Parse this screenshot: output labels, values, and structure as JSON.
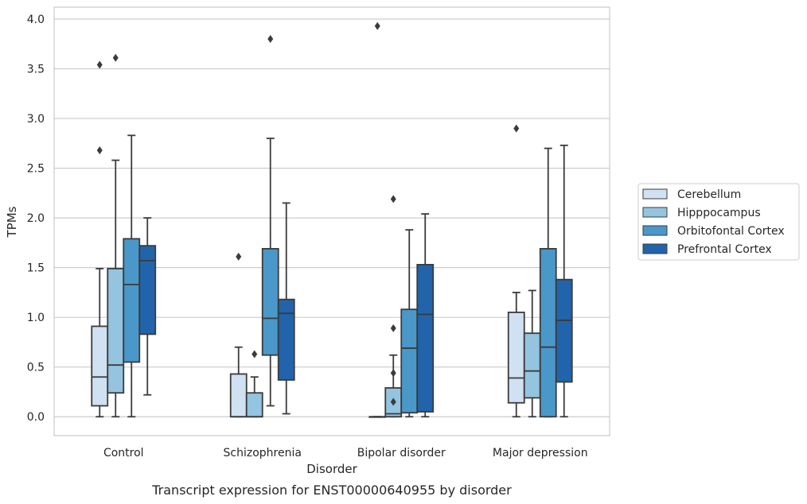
{
  "chart_data": {
    "type": "box",
    "title": "",
    "caption": "Transcript expression for ENST00000640955 by disorder",
    "xlabel": "Disorder",
    "ylabel": "TPMs",
    "ylim": [
      -0.19,
      4.12
    ],
    "yticks": [
      0.0,
      0.5,
      1.0,
      1.5,
      2.0,
      2.5,
      3.0,
      3.5,
      4.0
    ],
    "ytick_labels": [
      "0.0",
      "0.5",
      "1.0",
      "1.5",
      "2.0",
      "2.5",
      "3.0",
      "3.5",
      "4.0"
    ],
    "grid": true,
    "legend_position": "right",
    "categories": [
      "Control",
      "Schizophrenia",
      "Bipolar disorder",
      "Major depression"
    ],
    "series": [
      {
        "name": "Cerebellum",
        "color": "#d0e1f2",
        "boxes": [
          {
            "whislo": 0.0,
            "q1": 0.11,
            "med": 0.4,
            "q3": 0.91,
            "whishi": 1.49,
            "fliers": [
              2.68,
              3.54
            ]
          },
          {
            "whislo": 0.0,
            "q1": 0.0,
            "med": 0.0,
            "q3": 0.43,
            "whishi": 0.7,
            "fliers": [
              1.61
            ]
          },
          {
            "whislo": 0.0,
            "q1": 0.0,
            "med": 0.0,
            "q3": 0.0,
            "whishi": 0.0,
            "fliers": [
              3.93
            ]
          },
          {
            "whislo": 0.0,
            "q1": 0.14,
            "med": 0.39,
            "q3": 1.05,
            "whishi": 1.25,
            "fliers": [
              2.9
            ]
          }
        ]
      },
      {
        "name": "Hipppocampus",
        "color": "#94c4df",
        "boxes": [
          {
            "whislo": 0.0,
            "q1": 0.24,
            "med": 0.52,
            "q3": 1.49,
            "whishi": 2.58,
            "fliers": [
              3.61
            ]
          },
          {
            "whislo": 0.0,
            "q1": 0.0,
            "med": 0.0,
            "q3": 0.24,
            "whishi": 0.4,
            "fliers": [
              0.63
            ]
          },
          {
            "whislo": 0.0,
            "q1": 0.0,
            "med": 0.03,
            "q3": 0.29,
            "whishi": 0.62,
            "fliers": [
              0.15,
              0.44,
              0.89,
              2.19
            ]
          },
          {
            "whislo": 0.0,
            "q1": 0.19,
            "med": 0.46,
            "q3": 0.84,
            "whishi": 1.27,
            "fliers": []
          }
        ]
      },
      {
        "name": "Orbitofontal Cortex",
        "color": "#4a98c9",
        "boxes": [
          {
            "whislo": 0.0,
            "q1": 0.55,
            "med": 1.33,
            "q3": 1.79,
            "whishi": 2.83,
            "fliers": []
          },
          {
            "whislo": 0.11,
            "q1": 0.62,
            "med": 0.99,
            "q3": 1.69,
            "whishi": 2.8,
            "fliers": [
              3.8
            ]
          },
          {
            "whislo": 0.0,
            "q1": 0.04,
            "med": 0.69,
            "q3": 1.08,
            "whishi": 1.88,
            "fliers": []
          },
          {
            "whislo": 0.0,
            "q1": 0.0,
            "med": 0.7,
            "q3": 1.69,
            "whishi": 2.7,
            "fliers": []
          }
        ]
      },
      {
        "name": "Prefrontal Cortex",
        "color": "#2164ab",
        "boxes": [
          {
            "whislo": 0.22,
            "q1": 0.83,
            "med": 1.57,
            "q3": 1.72,
            "whishi": 2.0,
            "fliers": []
          },
          {
            "whislo": 0.03,
            "q1": 0.37,
            "med": 1.04,
            "q3": 1.18,
            "whishi": 2.15,
            "fliers": []
          },
          {
            "whislo": 0.0,
            "q1": 0.05,
            "med": 1.03,
            "q3": 1.53,
            "whishi": 2.04,
            "fliers": []
          },
          {
            "whislo": 0.0,
            "q1": 0.35,
            "med": 0.97,
            "q3": 1.38,
            "whishi": 2.73,
            "fliers": []
          }
        ]
      }
    ]
  }
}
